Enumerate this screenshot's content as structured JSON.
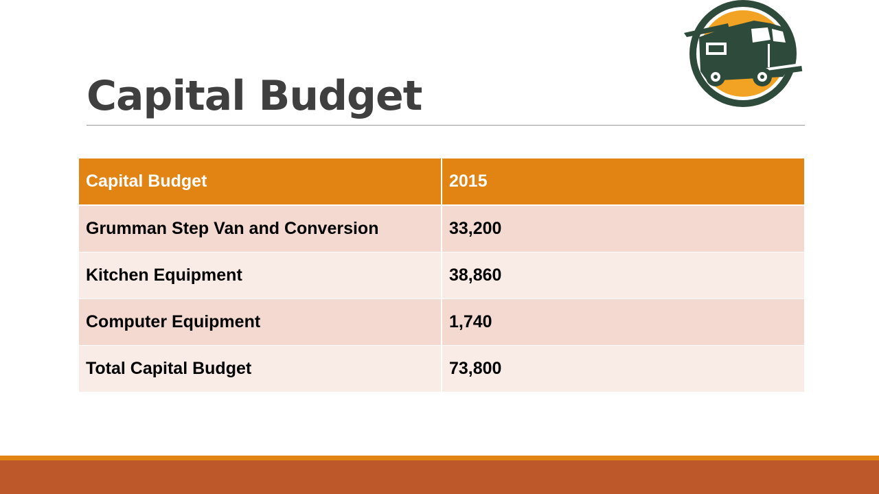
{
  "slide": {
    "title": "Capital Budget",
    "logo_icon": "food-truck-icon"
  },
  "table": {
    "headers": [
      "Capital Budget",
      "2015"
    ],
    "rows": [
      [
        "Grumman Step Van and Conversion",
        "33,200"
      ],
      [
        "Kitchen Equipment",
        "38,860"
      ],
      [
        "Computer Equipment",
        "1,740"
      ],
      [
        "Total Capital Budget",
        "73,800"
      ]
    ]
  },
  "colors": {
    "title_text": "#3f3f3f",
    "header_fill": "#e28414",
    "row_dark": "#f3d9cf",
    "row_light": "#f9ebe6",
    "accent_stripe": "#e28414",
    "footer_bar": "#bd582b",
    "logo_dark": "#2e4a3a",
    "logo_orange": "#f2a323"
  }
}
